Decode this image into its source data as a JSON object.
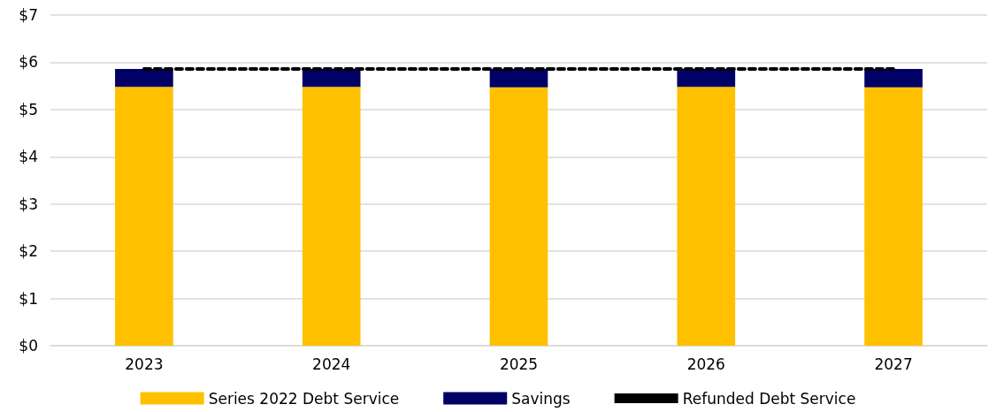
{
  "chart_data": {
    "type": "bar",
    "stacked": true,
    "categories": [
      "2023",
      "2024",
      "2025",
      "2026",
      "2027"
    ],
    "series": [
      {
        "name": "Series 2022 Debt Service",
        "color": "#ffc000",
        "values": [
          5.48,
          5.48,
          5.47,
          5.48,
          5.47
        ]
      },
      {
        "name": "Savings",
        "color": "#000066",
        "values": [
          0.38,
          0.38,
          0.39,
          0.38,
          0.39
        ]
      },
      {
        "name": "Refunded Debt Service",
        "type": "line",
        "color": "#000000",
        "line_style": "dashed",
        "values": [
          5.86,
          5.86,
          5.86,
          5.86,
          5.86
        ]
      }
    ],
    "ylim": [
      0,
      7
    ],
    "yticks": [
      {
        "value": 0,
        "label": "$0"
      },
      {
        "value": 1,
        "label": "$1"
      },
      {
        "value": 2,
        "label": "$2"
      },
      {
        "value": 3,
        "label": "$3"
      },
      {
        "value": 4,
        "label": "$4"
      },
      {
        "value": 5,
        "label": "$5"
      },
      {
        "value": 6,
        "label": "$6"
      },
      {
        "value": 7,
        "label": "$7"
      }
    ],
    "grid": "y",
    "legend": "bottom",
    "marker": "none"
  }
}
